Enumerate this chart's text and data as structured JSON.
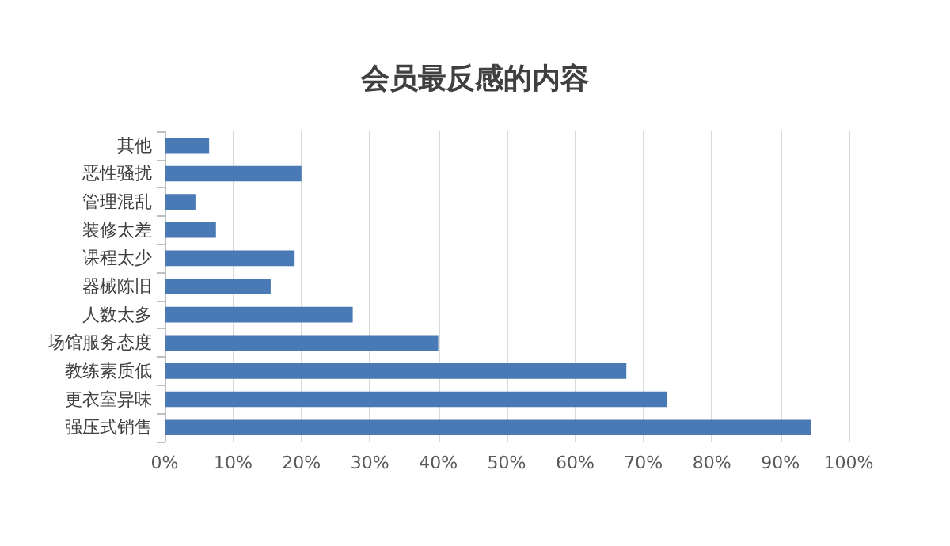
{
  "chart_data": {
    "type": "bar",
    "orientation": "horizontal",
    "title": "会员最反感的内容",
    "categories": [
      "其他",
      "恶性骚扰",
      "管理混乱",
      "装修太差",
      "课程太少",
      "器械陈旧",
      "人数太多",
      "场馆服务态度",
      "教练素质低",
      "更衣室异味",
      "强压式销售"
    ],
    "values": [
      6.5,
      20,
      4.5,
      7.5,
      19,
      15.5,
      27.5,
      40,
      67.5,
      73.5,
      94.5
    ],
    "color": "#4a7ab5",
    "xlim": [
      0,
      100
    ],
    "xticks": [
      {
        "value": 0,
        "label": "0%"
      },
      {
        "value": 10,
        "label": "10%"
      },
      {
        "value": 20,
        "label": "20%"
      },
      {
        "value": 30,
        "label": "30%"
      },
      {
        "value": 40,
        "label": "40%"
      },
      {
        "value": 50,
        "label": "50%"
      },
      {
        "value": 60,
        "label": "60%"
      },
      {
        "value": 70,
        "label": "70%"
      },
      {
        "value": 80,
        "label": "80%"
      },
      {
        "value": 90,
        "label": "90%"
      },
      {
        "value": 100,
        "label": "100%"
      }
    ],
    "grid": "x"
  }
}
